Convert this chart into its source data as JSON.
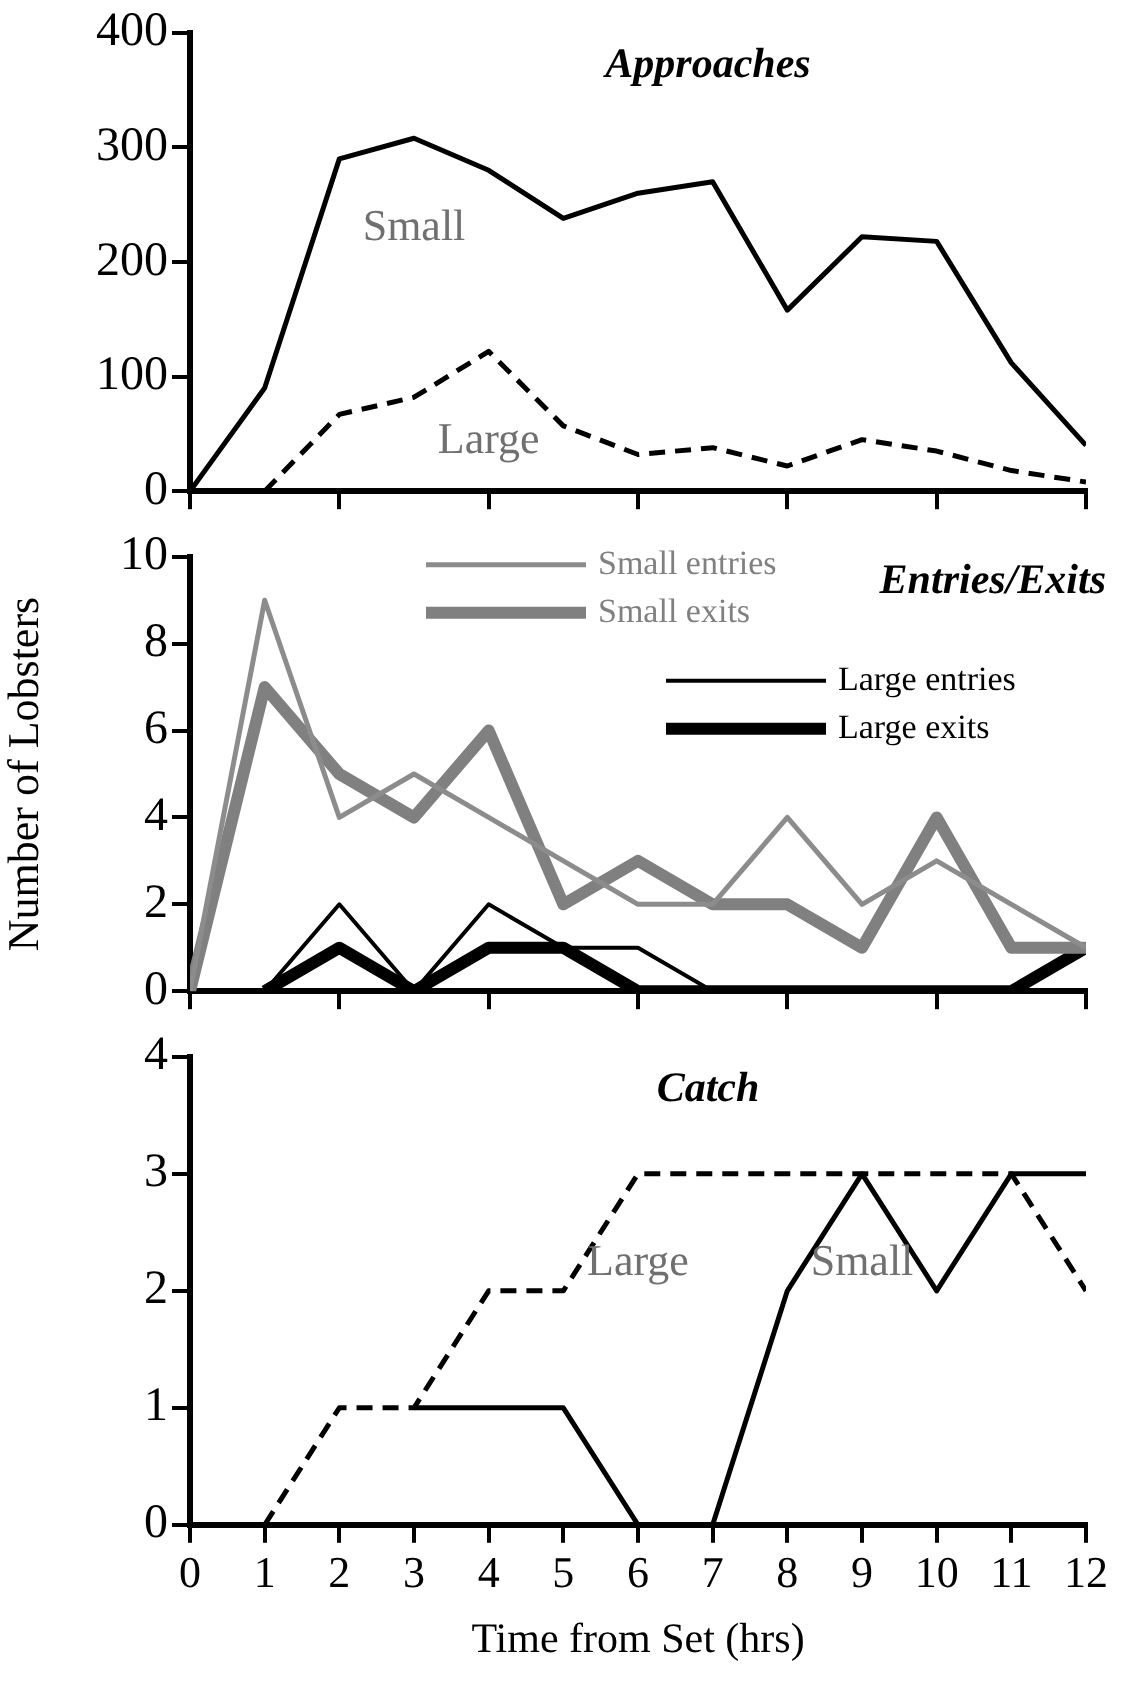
{
  "chart_data": [
    {
      "type": "line",
      "title": "Approaches",
      "x": [
        0,
        1,
        2,
        3,
        4,
        5,
        6,
        7,
        8,
        9,
        10,
        11,
        12
      ],
      "xlim": [
        0,
        12
      ],
      "xticks": [
        0,
        2,
        4,
        6,
        8,
        10,
        12
      ],
      "ylim": [
        0,
        400
      ],
      "yticks": [
        0,
        100,
        200,
        300,
        400
      ],
      "tick_labels": "y",
      "grid": false,
      "legend": false,
      "marker": "none",
      "series": [
        {
          "name": "Small",
          "color": "#000000",
          "line_style": "solid",
          "values": [
            0,
            90,
            290,
            308,
            280,
            238,
            260,
            270,
            158,
            222,
            218,
            112,
            40
          ]
        },
        {
          "name": "Large",
          "color": "#000000",
          "line_style": "dashed",
          "values": [
            null,
            0,
            67,
            82,
            122,
            57,
            32,
            38,
            22,
            45,
            35,
            18,
            8
          ]
        }
      ]
    },
    {
      "type": "line",
      "title": "Entries/Exits",
      "ylabel": "Number of Lobsters",
      "x": [
        0,
        1,
        2,
        3,
        4,
        5,
        6,
        7,
        8,
        9,
        10,
        11,
        12
      ],
      "xlim": [
        0,
        12
      ],
      "xticks": [
        0,
        2,
        4,
        6,
        8,
        10,
        12
      ],
      "ylim": [
        0,
        10
      ],
      "yticks": [
        0,
        2,
        4,
        6,
        8,
        10
      ],
      "tick_labels": "y",
      "grid": false,
      "legend": "top right",
      "marker": "none",
      "series": [
        {
          "name": "Small entries",
          "color": "#8c8c8c",
          "line_style": "solid",
          "values": [
            0,
            9,
            4,
            5,
            4,
            3,
            2,
            2,
            4,
            2,
            3,
            2,
            1
          ]
        },
        {
          "name": "Small exits",
          "color": "#808080",
          "line_style": "solid",
          "values": [
            0,
            7,
            5,
            4,
            6,
            2,
            3,
            2,
            2,
            1,
            4,
            1,
            1
          ]
        },
        {
          "name": "Large entries",
          "color": "#000000",
          "line_style": "solid",
          "values": [
            null,
            0,
            2,
            0,
            2,
            1,
            1,
            0,
            0,
            0,
            0,
            0,
            0
          ]
        },
        {
          "name": "Large exits",
          "color": "#000000",
          "line_style": "solid",
          "values": [
            null,
            0,
            1,
            0,
            1,
            1,
            0,
            0,
            0,
            0,
            0,
            0,
            1
          ]
        }
      ]
    },
    {
      "type": "line",
      "title": "Catch",
      "xlabel": "Time from Set (hrs)",
      "x": [
        1,
        2,
        3,
        4,
        5,
        6,
        7,
        8,
        9,
        10,
        11,
        12
      ],
      "xlim": [
        0,
        12
      ],
      "xticks": [
        0,
        1,
        2,
        3,
        4,
        5,
        6,
        7,
        8,
        9,
        10,
        11,
        12
      ],
      "ylim": [
        0,
        4
      ],
      "yticks": [
        0,
        1,
        2,
        3,
        4
      ],
      "grid": false,
      "legend": false,
      "marker": "none",
      "series": [
        {
          "name": "Large",
          "color": "#000000",
          "line_style": "dashed",
          "values": [
            0,
            1,
            1,
            2,
            2,
            3,
            3,
            3,
            3,
            3,
            3,
            2
          ]
        },
        {
          "name": "Small",
          "color": "#000000",
          "line_style": "solid",
          "values": [
            null,
            null,
            1,
            1,
            1,
            0,
            0,
            2,
            3,
            2,
            3,
            3
          ]
        }
      ]
    }
  ]
}
